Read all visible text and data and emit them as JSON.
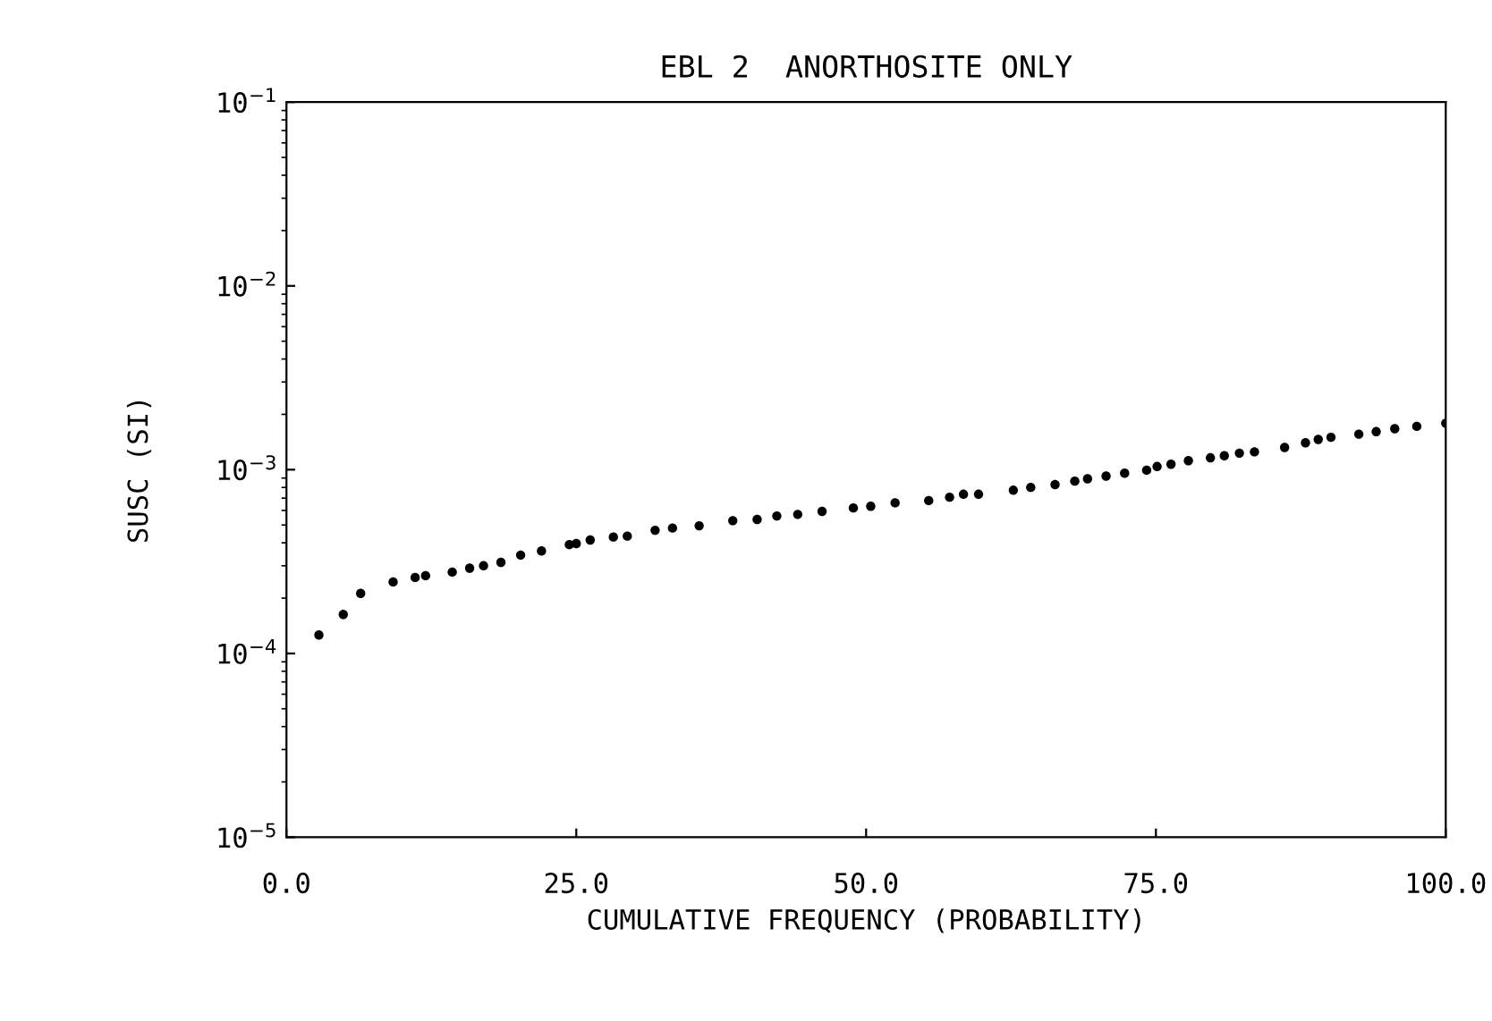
{
  "chart_data": {
    "type": "scatter",
    "title": "EBL 2  ANORTHOSITE ONLY",
    "xlabel": "CUMULATIVE FREQUENCY (PROBABILITY)",
    "ylabel": "SUSC (SI)",
    "log": "y",
    "marker": "circle",
    "grid": false,
    "xlim": [
      0,
      100
    ],
    "xticks": [
      {
        "value": 0,
        "label": "0.0"
      },
      {
        "value": 25,
        "label": "25.0"
      },
      {
        "value": 50,
        "label": "50.0"
      },
      {
        "value": 75,
        "label": "75.0"
      },
      {
        "value": 100,
        "label": "100.0"
      }
    ],
    "ylim": [
      1e-05,
      0.1
    ],
    "yticks": [
      {
        "value": 0.1,
        "label": "10$^{−1}$"
      },
      {
        "value": 0.01,
        "label": "10$^{−2}$"
      },
      {
        "value": 0.001,
        "label": "10$^{−3}$"
      },
      {
        "value": 0.0001,
        "label": "10$^{−4}$"
      },
      {
        "value": 1e-05,
        "label": "10$^{−5}$"
      }
    ],
    "series": [
      {
        "color": "#000000",
        "x": [
          2.8,
          4.9,
          6.4,
          9.2,
          11.1,
          12.0,
          14.3,
          15.8,
          17.0,
          18.5,
          20.2,
          22.0,
          24.4,
          25.0,
          26.2,
          28.2,
          29.4,
          31.8,
          33.3,
          35.6,
          38.5,
          40.6,
          42.3,
          44.1,
          46.2,
          48.9,
          50.4,
          52.5,
          55.4,
          57.2,
          58.4,
          59.7,
          62.7,
          64.2,
          66.3,
          68.0,
          69.1,
          70.7,
          72.3,
          74.2,
          75.1,
          76.3,
          77.8,
          79.7,
          80.9,
          82.2,
          83.5,
          86.1,
          87.9,
          89.0,
          90.1,
          92.5,
          94.0,
          95.6,
          97.5,
          100
        ],
        "values": [
          0.000126,
          0.000163,
          0.000212,
          0.000245,
          0.000259,
          0.000265,
          0.000277,
          0.000291,
          0.0003,
          0.000313,
          0.000343,
          0.000361,
          0.000391,
          0.000396,
          0.000414,
          0.00043,
          0.000435,
          0.000468,
          0.000481,
          0.000495,
          0.000528,
          0.000536,
          0.00056,
          0.000571,
          0.000593,
          0.000619,
          0.000632,
          0.00066,
          0.000679,
          0.000708,
          0.000735,
          0.000735,
          0.000773,
          0.000801,
          0.00083,
          0.000866,
          0.000892,
          0.000923,
          0.000957,
          0.000993,
          0.00104,
          0.00107,
          0.00112,
          0.00116,
          0.00119,
          0.00123,
          0.00125,
          0.00132,
          0.0014,
          0.00146,
          0.0015,
          0.00156,
          0.00161,
          0.00167,
          0.00172,
          0.00179
        ]
      }
    ]
  }
}
